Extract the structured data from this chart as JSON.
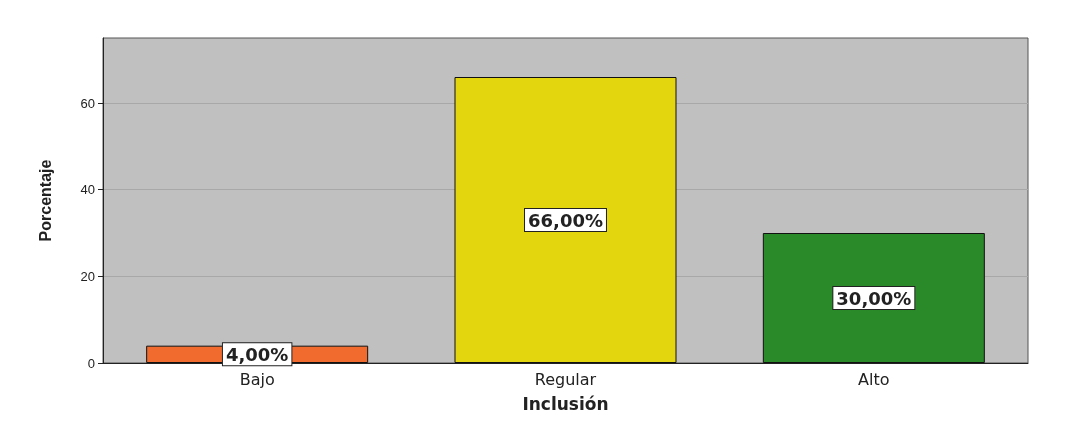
{
  "chart_data": {
    "type": "bar",
    "xlabel": "Inclusión",
    "ylabel": "Porcentaje",
    "categories": [
      "Bajo",
      "Regular",
      "Alto"
    ],
    "values": [
      4,
      66,
      30
    ],
    "colors": [
      "#f26b2e",
      "#e3d60f",
      "#2a8a2a"
    ],
    "value_labels": [
      "4,00%",
      "66,00%",
      "30,00%"
    ],
    "ylim": [
      0,
      75
    ],
    "yticks": [
      0,
      20,
      40,
      60
    ],
    "grid": "y"
  }
}
